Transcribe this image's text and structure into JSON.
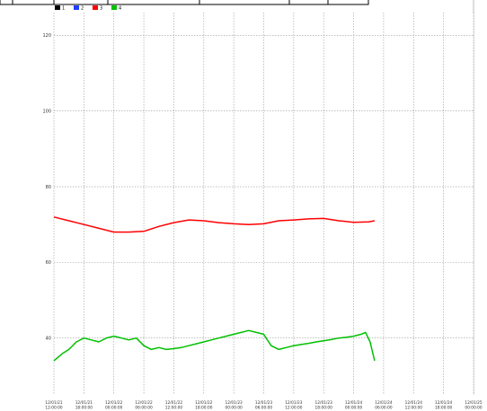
{
  "chart_data": {
    "type": "line",
    "title": "",
    "xlabel": "",
    "ylabel": "",
    "ylim": [
      25,
      126
    ],
    "grid": true,
    "legend_position": "top-left",
    "x_ticks": [
      [
        "12/01/21",
        "12:00:00"
      ],
      [
        "12/01/21",
        "18:00:00"
      ],
      [
        "12/01/22",
        "00:00:00"
      ],
      [
        "12/01/22",
        "06:00:00"
      ],
      [
        "12/01/22",
        "12:00:00"
      ],
      [
        "12/01/22",
        "18:00:00"
      ],
      [
        "12/01/23",
        "00:00:00"
      ],
      [
        "12/01/23",
        "06:00:00"
      ],
      [
        "12/01/23",
        "12:00:00"
      ],
      [
        "12/01/23",
        "18:00:00"
      ],
      [
        "12/01/24",
        "00:00:00"
      ],
      [
        "12/01/24",
        "06:00:00"
      ],
      [
        "12/01/24",
        "12:00:00"
      ],
      [
        "12/01/24",
        "18:00:00"
      ],
      [
        "12/01/25",
        "00:00:00"
      ]
    ],
    "y_ticks": [
      40,
      60,
      80,
      100,
      120
    ],
    "series": [
      {
        "name": "1",
        "color": "#000000",
        "x": [],
        "y": []
      },
      {
        "name": "2",
        "color": "#1f3fff",
        "x": [],
        "y": []
      },
      {
        "name": "3",
        "color": "#ff0000",
        "x": [
          0,
          0.5,
          1,
          1.5,
          2,
          2.5,
          3,
          3.5,
          4,
          4.5,
          5,
          5.5,
          6,
          6.5,
          7,
          7.5,
          8,
          8.5,
          9,
          9.5,
          10,
          10.5,
          10.7
        ],
        "y": [
          72,
          71,
          70,
          69,
          68,
          68,
          68.2,
          69.5,
          70.5,
          71.2,
          71,
          70.5,
          70.2,
          70,
          70.2,
          71,
          71.2,
          71.5,
          71.6,
          71,
          70.6,
          70.7,
          71
        ]
      },
      {
        "name": "4",
        "color": "#00c000",
        "x": [
          0,
          0.15,
          0.3,
          0.5,
          0.75,
          1,
          1.25,
          1.5,
          1.75,
          2,
          2.25,
          2.5,
          2.75,
          3,
          3.25,
          3.5,
          3.75,
          4,
          4.25,
          4.5,
          4.75,
          5,
          5.25,
          5.5,
          5.75,
          6,
          6.25,
          6.5,
          6.75,
          7,
          7.25,
          7.5,
          7.75,
          8,
          8.25,
          8.5,
          8.75,
          9,
          9.25,
          9.5,
          9.75,
          10,
          10.25,
          10.4,
          10.55,
          10.7
        ],
        "y": [
          34,
          35,
          36,
          37,
          39,
          40,
          39.5,
          39,
          40,
          40.5,
          40,
          39.5,
          40,
          38,
          37,
          37.5,
          37,
          37.2,
          37.5,
          38,
          38.5,
          39,
          39.5,
          40,
          40.5,
          41,
          41.5,
          42,
          41.5,
          41,
          38,
          37,
          37.5,
          38,
          38.3,
          38.6,
          39,
          39.3,
          39.6,
          40,
          40.2,
          40.5,
          41,
          41.5,
          39,
          34
        ]
      }
    ]
  }
}
